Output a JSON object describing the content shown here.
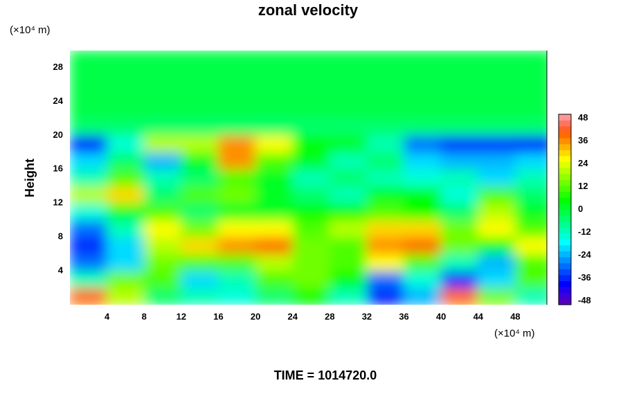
{
  "chart_data": {
    "type": "heatmap",
    "title": "zonal velocity",
    "ylabel": "Height",
    "x_unit": "(×10⁴ m)",
    "y_unit": "(×10⁴ m)",
    "footer": "TIME = 1014720.0",
    "xlim": [
      0,
      51.4
    ],
    "ylim": [
      0,
      30
    ],
    "clim": [
      -50,
      50
    ],
    "xticks": [
      4,
      8,
      12,
      16,
      20,
      24,
      28,
      32,
      36,
      40,
      44,
      48
    ],
    "yticks": [
      4,
      8,
      12,
      16,
      20,
      24,
      28
    ],
    "cticks": [
      48,
      36,
      24,
      12,
      0,
      -12,
      -24,
      -36,
      -48
    ],
    "x": [
      2,
      6,
      10,
      14,
      18,
      22,
      26,
      30,
      34,
      38,
      42,
      46,
      50
    ],
    "y": [
      1,
      3,
      5,
      7,
      9,
      11,
      13,
      15,
      17,
      19,
      21,
      23,
      25,
      27,
      29
    ],
    "z": [
      [
        40,
        20,
        -5,
        -10,
        -15,
        -5,
        5,
        -10,
        -35,
        -25,
        40,
        15,
        -10
      ],
      [
        -10,
        15,
        10,
        -20,
        -10,
        10,
        15,
        5,
        -30,
        -15,
        -35,
        -20,
        10
      ],
      [
        -30,
        -20,
        15,
        10,
        10,
        20,
        15,
        10,
        25,
        10,
        -10,
        -25,
        10
      ],
      [
        -35,
        -20,
        20,
        30,
        35,
        40,
        15,
        10,
        35,
        40,
        15,
        5,
        25
      ],
      [
        -30,
        -10,
        25,
        15,
        25,
        25,
        10,
        20,
        30,
        30,
        15,
        25,
        10
      ],
      [
        -15,
        0,
        10,
        -5,
        0,
        0,
        5,
        5,
        10,
        5,
        -5,
        20,
        0
      ],
      [
        20,
        30,
        -5,
        10,
        15,
        0,
        -5,
        -10,
        0,
        5,
        -15,
        10,
        -5
      ],
      [
        -10,
        10,
        -10,
        -5,
        10,
        0,
        -10,
        -5,
        -10,
        -15,
        -10,
        -20,
        -10
      ],
      [
        -20,
        -5,
        -25,
        0,
        35,
        10,
        0,
        -10,
        -5,
        -20,
        -25,
        -25,
        -20
      ],
      [
        -40,
        -15,
        20,
        20,
        35,
        25,
        5,
        0,
        -10,
        -30,
        -35,
        -35,
        -40
      ],
      [
        -5,
        -5,
        -5,
        -5,
        -5,
        -5,
        -5,
        -5,
        -5,
        -5,
        -5,
        -5,
        -5
      ],
      [
        -3,
        -3,
        -3,
        -3,
        -3,
        -3,
        -3,
        -3,
        -3,
        -3,
        -3,
        -3,
        -3
      ],
      [
        -2,
        -2,
        -2,
        -2,
        -2,
        -2,
        -2,
        -2,
        -2,
        -2,
        -2,
        -2,
        -2
      ],
      [
        -2,
        -2,
        -2,
        -2,
        -2,
        -2,
        -2,
        -2,
        -2,
        -2,
        -2,
        -2,
        -2
      ],
      [
        -2,
        -2,
        -2,
        -2,
        -2,
        -2,
        -2,
        -2,
        -2,
        -2,
        -2,
        -2,
        -2
      ]
    ]
  }
}
